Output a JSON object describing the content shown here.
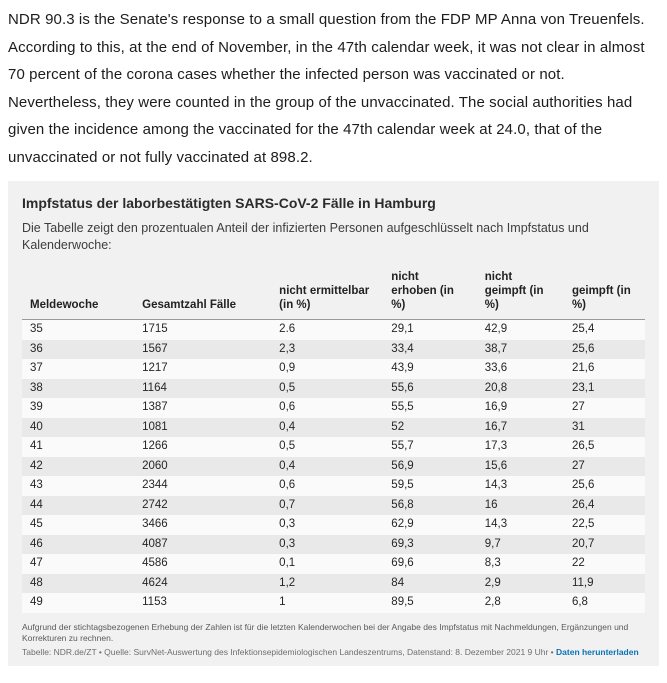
{
  "article": {
    "paragraph": "NDR 90.3 is the Senate's response to a small question from the FDP MP Anna von Treuenfels. According to this, at the end of November, in the 47th calendar week, it was not clear in almost 70 percent of the corona cases whether the infected person was vaccinated or not. Nevertheless, they were counted in the group of the unvaccinated. The social authorities had given the incidence among the vaccinated for the 47th calendar week at 24.0, that of the unvaccinated or not fully vaccinated at 898.2."
  },
  "chart_data": {
    "type": "table",
    "title": "Impfstatus der laborbestätigten SARS-CoV-2 Fälle in Hamburg",
    "subtitle": "Die Tabelle zeigt den prozentualen Anteil der infizierten Personen aufgeschlüsselt nach Impfstatus und Kalenderwoche:",
    "columns": [
      "Meldewoche",
      "Gesamtzahl Fälle",
      "nicht ermittelbar (in %)",
      "nicht erhoben (in %)",
      "nicht geimpft (in %)",
      "geimpft (in %)"
    ],
    "rows": [
      [
        "35",
        "1715",
        "2.6",
        "29,1",
        "42,9",
        "25,4"
      ],
      [
        "36",
        "1567",
        "2,3",
        "33,4",
        "38,7",
        "25,6"
      ],
      [
        "37",
        "1217",
        "0,9",
        "43,9",
        "33,6",
        "21,6"
      ],
      [
        "38",
        "1164",
        "0,5",
        "55,6",
        "20,8",
        "23,1"
      ],
      [
        "39",
        "1387",
        "0,6",
        "55,5",
        "16,9",
        "27"
      ],
      [
        "40",
        "1081",
        "0,4",
        "52",
        "16,7",
        "31"
      ],
      [
        "41",
        "1266",
        "0,5",
        "55,7",
        "17,3",
        "26,5"
      ],
      [
        "42",
        "2060",
        "0,4",
        "56,9",
        "15,6",
        "27"
      ],
      [
        "43",
        "2344",
        "0,6",
        "59,5",
        "14,3",
        "25,6"
      ],
      [
        "44",
        "2742",
        "0,7",
        "56,8",
        "16",
        "26,4"
      ],
      [
        "45",
        "3466",
        "0,3",
        "62,9",
        "14,3",
        "22,5"
      ],
      [
        "46",
        "4087",
        "0,3",
        "69,3",
        "9,7",
        "20,7"
      ],
      [
        "47",
        "4586",
        "0,1",
        "69,6",
        "8,3",
        "22"
      ],
      [
        "48",
        "4624",
        "1,2",
        "84",
        "2,9",
        "11,9"
      ],
      [
        "49",
        "1153",
        "1",
        "89,5",
        "2,8",
        "6,8"
      ]
    ],
    "footnote": "Aufgrund der stichtagsbezogenen Erhebung der Zahlen ist für die letzten Kalenderwochen bei der Angabe des Impfstatus mit Nachmeldungen, Ergänzungen und Korrekturen zu rechnen.",
    "credit": "Tabelle: NDR.de/ZT • Quelle: SurvNet-Auswertung des Infektionsepidemiologischen Landeszentrums, Datenstand: 8. Dezember 2021 9 Uhr • ",
    "download_link": "Daten herunterladen",
    "colors": {
      "widget_background": "#f1f1f1",
      "row_stripe_light": "#fafafa",
      "row_stripe_dark": "#e9e9e9",
      "link_blue": "#0b72b5"
    }
  }
}
